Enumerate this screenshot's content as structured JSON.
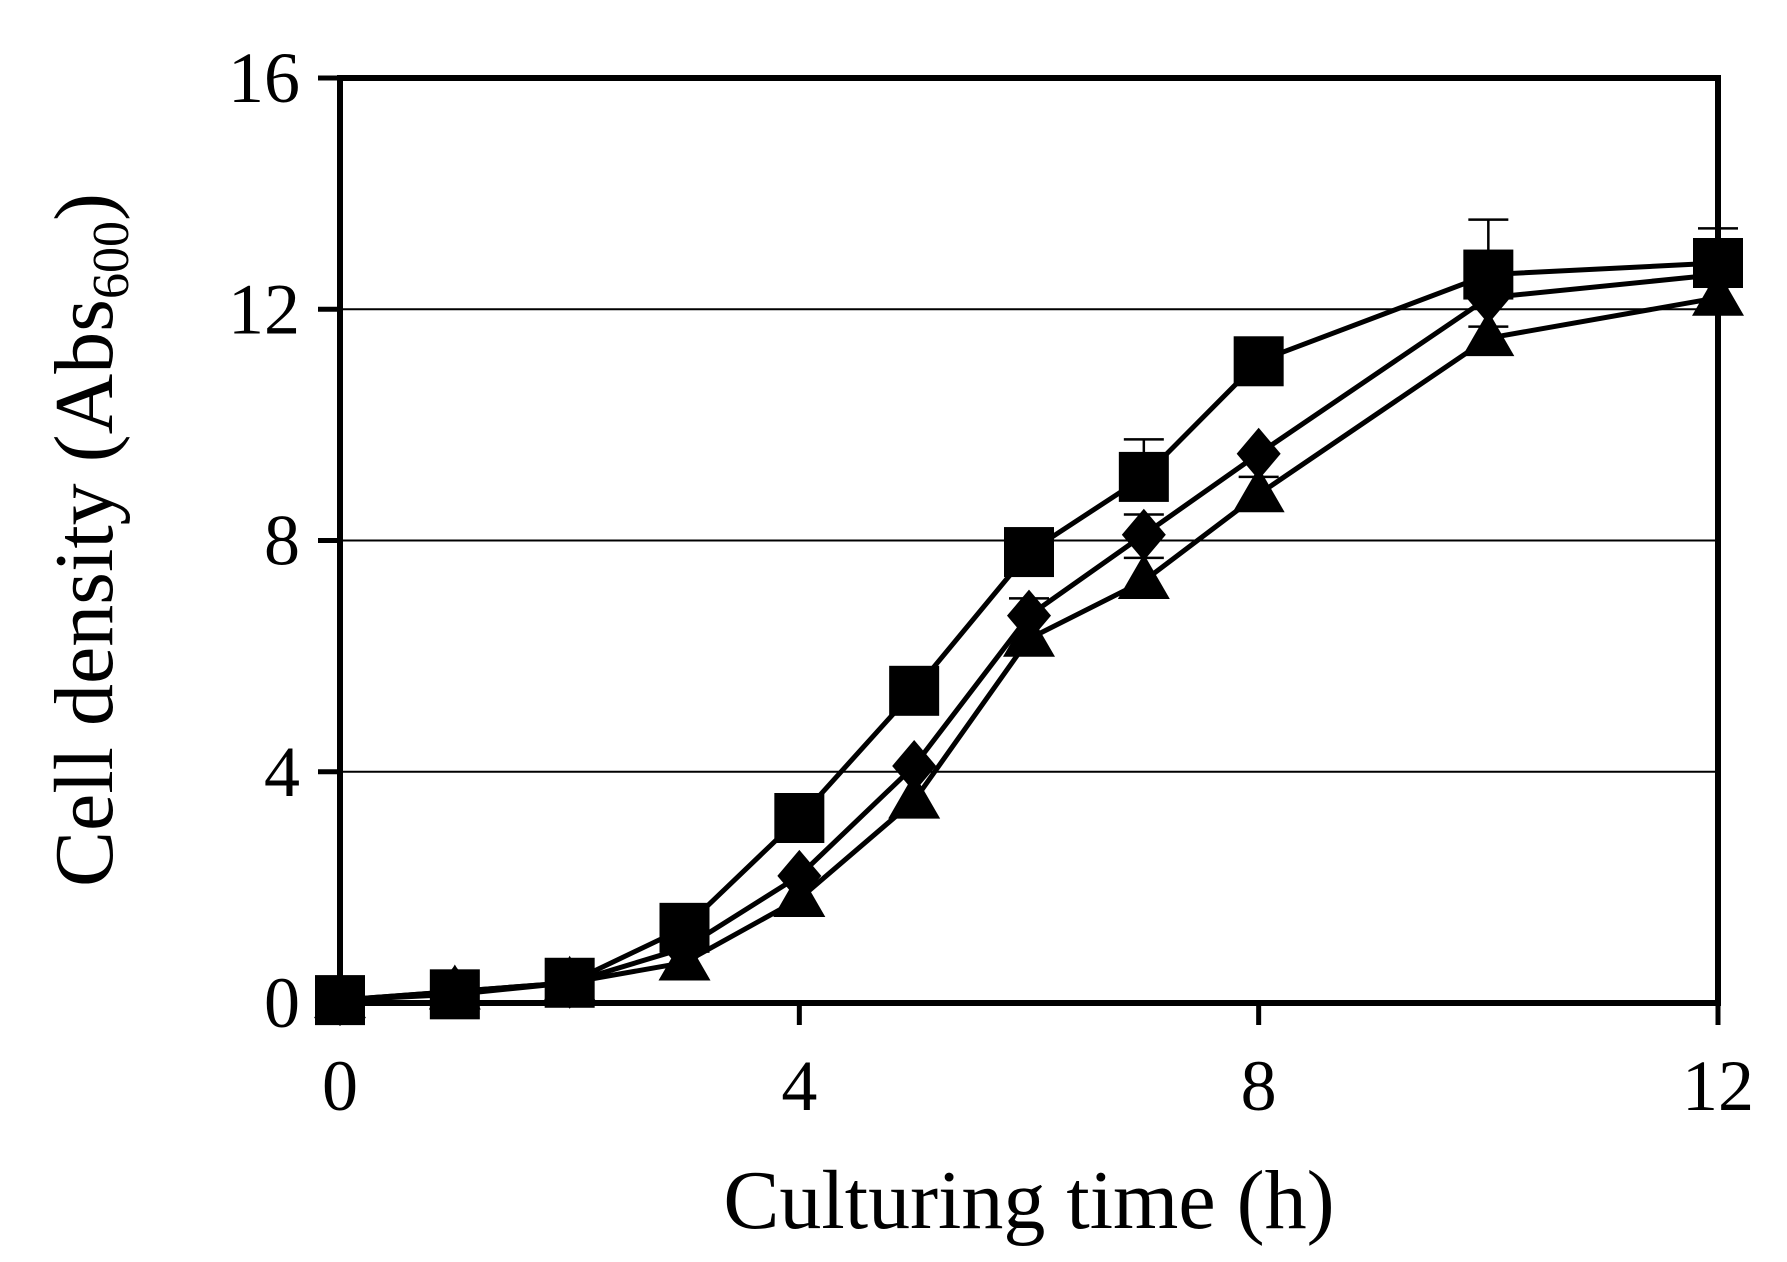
{
  "chart_data": {
    "type": "line",
    "xlabel": "Culturing time (h)",
    "ylabel": {
      "main": "Cell density (Abs",
      "subscript": "600",
      "close": ")"
    },
    "xlim": [
      0,
      12
    ],
    "ylim": [
      0,
      16
    ],
    "x_ticks": [
      0,
      4,
      8,
      12
    ],
    "y_ticks": [
      0,
      4,
      8,
      12,
      16
    ],
    "grid": "horizontal",
    "x": [
      0,
      1,
      2,
      3,
      4,
      5,
      6,
      7,
      8,
      10,
      12
    ],
    "series": [
      {
        "marker": "square",
        "values": [
          0.05,
          0.15,
          0.35,
          1.3,
          3.2,
          5.4,
          7.8,
          9.1,
          11.1,
          12.6,
          12.8
        ],
        "errors": [
          0,
          0,
          0,
          0,
          0,
          0,
          0,
          0.65,
          0,
          0.95,
          0.6
        ]
      },
      {
        "marker": "diamond",
        "values": [
          0.05,
          0.2,
          0.35,
          0.95,
          2.2,
          4.1,
          6.7,
          8.1,
          9.5,
          12.2,
          12.6
        ],
        "errors": [
          0,
          0,
          0,
          0,
          0,
          0,
          0.3,
          0.35,
          0,
          0,
          0
        ]
      },
      {
        "marker": "triangle",
        "values": [
          0.05,
          0.2,
          0.35,
          0.7,
          1.8,
          3.5,
          6.3,
          7.3,
          8.8,
          11.5,
          12.2
        ],
        "errors": [
          0,
          0,
          0,
          0,
          0,
          0,
          0,
          0.4,
          0.3,
          0.2,
          0
        ]
      }
    ]
  }
}
